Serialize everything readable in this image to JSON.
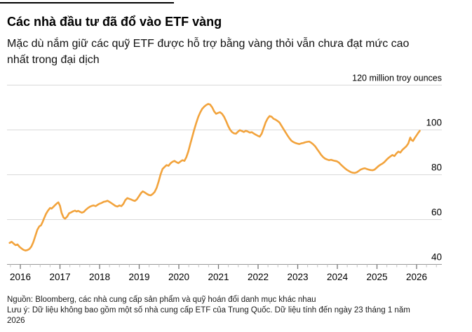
{
  "page": {
    "title": "Các nhà đầu tư đã đổ vào ETF vàng",
    "subtitle": "Mặc dù nắm giữ các quỹ ETF được hỗ trợ bằng vàng thỏi vẫn chưa đạt mức cao nhất trong đại dịch",
    "source_note": "Nguồn: Bloomberg, các nhà cung cấp sản phẩm và quỹ hoán đổi danh mục khác nhau",
    "data_note": "Lưu ý: Dữ liệu không bao gồm một số nhà cung cấp ETF của Trung Quốc. Dữ liệu tính đến ngày 23 tháng 1 năm 2026"
  },
  "chart_data": {
    "type": "line",
    "title": "Các nhà đầu tư đã đổ vào ETF vàng",
    "unit_label": "120 million troy ounces",
    "ylabel": "million troy ounces",
    "ylim": [
      40,
      120
    ],
    "xlim": [
      2015.73,
      2026.55
    ],
    "grid": true,
    "legend_position": "none",
    "y_ticks": [
      40,
      60,
      80,
      100,
      120
    ],
    "x_tick_labels": [
      "2016",
      "2017",
      "2018",
      "2019",
      "2020",
      "2021",
      "2022",
      "2023",
      "2024",
      "2025",
      "2026"
    ],
    "line_color": "#F2A33C",
    "grid_color": "#D9D9D9",
    "axis_color": "#9A9A9A",
    "major_tick_color": "#767676",
    "minor_tick_color": "#C2C2C2",
    "points": [
      [
        2015.73,
        49.6
      ],
      [
        2015.78,
        50.1
      ],
      [
        2015.83,
        49.3
      ],
      [
        2015.88,
        48.6
      ],
      [
        2015.93,
        48.9
      ],
      [
        2015.98,
        47.8
      ],
      [
        2016.03,
        47.1
      ],
      [
        2016.08,
        46.5
      ],
      [
        2016.13,
        46.2
      ],
      [
        2016.18,
        46.4
      ],
      [
        2016.23,
        46.9
      ],
      [
        2016.28,
        48.0
      ],
      [
        2016.33,
        50.0
      ],
      [
        2016.38,
        52.8
      ],
      [
        2016.43,
        55.5
      ],
      [
        2016.48,
        57.0
      ],
      [
        2016.52,
        57.4
      ],
      [
        2016.56,
        58.8
      ],
      [
        2016.6,
        60.6
      ],
      [
        2016.65,
        62.6
      ],
      [
        2016.7,
        64.1
      ],
      [
        2016.75,
        65.2
      ],
      [
        2016.79,
        64.9
      ],
      [
        2016.83,
        65.6
      ],
      [
        2016.88,
        66.5
      ],
      [
        2016.93,
        67.3
      ],
      [
        2016.96,
        67.7
      ],
      [
        2017.0,
        66.2
      ],
      [
        2017.04,
        63.0
      ],
      [
        2017.09,
        60.9
      ],
      [
        2017.13,
        60.4
      ],
      [
        2017.18,
        61.3
      ],
      [
        2017.23,
        62.8
      ],
      [
        2017.28,
        63.2
      ],
      [
        2017.33,
        63.7
      ],
      [
        2017.38,
        64.0
      ],
      [
        2017.42,
        63.6
      ],
      [
        2017.46,
        63.9
      ],
      [
        2017.5,
        63.5
      ],
      [
        2017.55,
        63.1
      ],
      [
        2017.6,
        63.4
      ],
      [
        2017.65,
        64.3
      ],
      [
        2017.7,
        65.1
      ],
      [
        2017.75,
        65.7
      ],
      [
        2017.8,
        66.1
      ],
      [
        2017.85,
        66.3
      ],
      [
        2017.9,
        66.0
      ],
      [
        2017.95,
        66.6
      ],
      [
        2018.0,
        67.1
      ],
      [
        2018.05,
        67.4
      ],
      [
        2018.1,
        67.9
      ],
      [
        2018.15,
        68.1
      ],
      [
        2018.2,
        68.4
      ],
      [
        2018.25,
        67.9
      ],
      [
        2018.3,
        67.3
      ],
      [
        2018.35,
        66.7
      ],
      [
        2018.4,
        66.1
      ],
      [
        2018.45,
        65.8
      ],
      [
        2018.5,
        66.3
      ],
      [
        2018.55,
        66.0
      ],
      [
        2018.6,
        67.0
      ],
      [
        2018.65,
        68.7
      ],
      [
        2018.7,
        69.6
      ],
      [
        2018.74,
        69.3
      ],
      [
        2018.79,
        69.0
      ],
      [
        2018.84,
        68.6
      ],
      [
        2018.89,
        68.3
      ],
      [
        2018.94,
        69.0
      ],
      [
        2019.0,
        70.6
      ],
      [
        2019.05,
        71.9
      ],
      [
        2019.09,
        72.6
      ],
      [
        2019.14,
        72.1
      ],
      [
        2019.19,
        71.5
      ],
      [
        2019.24,
        71.0
      ],
      [
        2019.29,
        70.8
      ],
      [
        2019.34,
        71.4
      ],
      [
        2019.39,
        72.3
      ],
      [
        2019.44,
        74.2
      ],
      [
        2019.49,
        77.0
      ],
      [
        2019.54,
        80.2
      ],
      [
        2019.59,
        82.6
      ],
      [
        2019.64,
        83.5
      ],
      [
        2019.69,
        84.3
      ],
      [
        2019.74,
        84.0
      ],
      [
        2019.79,
        85.1
      ],
      [
        2019.84,
        85.8
      ],
      [
        2019.89,
        86.2
      ],
      [
        2019.94,
        85.6
      ],
      [
        2019.99,
        85.2
      ],
      [
        2020.04,
        85.9
      ],
      [
        2020.09,
        86.5
      ],
      [
        2020.14,
        86.2
      ],
      [
        2020.19,
        87.8
      ],
      [
        2020.24,
        90.5
      ],
      [
        2020.29,
        93.8
      ],
      [
        2020.34,
        97.0
      ],
      [
        2020.39,
        100.2
      ],
      [
        2020.44,
        103.2
      ],
      [
        2020.49,
        105.8
      ],
      [
        2020.54,
        107.8
      ],
      [
        2020.59,
        109.4
      ],
      [
        2020.64,
        110.4
      ],
      [
        2020.69,
        111.1
      ],
      [
        2020.74,
        111.6
      ],
      [
        2020.79,
        111.3
      ],
      [
        2020.84,
        110.1
      ],
      [
        2020.89,
        108.3
      ],
      [
        2020.94,
        107.2
      ],
      [
        2020.99,
        107.6
      ],
      [
        2021.04,
        107.9
      ],
      [
        2021.09,
        107.2
      ],
      [
        2021.14,
        105.9
      ],
      [
        2021.19,
        104.1
      ],
      [
        2021.24,
        101.9
      ],
      [
        2021.29,
        100.2
      ],
      [
        2021.34,
        99.1
      ],
      [
        2021.39,
        98.5
      ],
      [
        2021.44,
        98.3
      ],
      [
        2021.49,
        99.2
      ],
      [
        2021.54,
        99.9
      ],
      [
        2021.59,
        99.5
      ],
      [
        2021.64,
        99.1
      ],
      [
        2021.69,
        99.6
      ],
      [
        2021.74,
        99.3
      ],
      [
        2021.79,
        98.8
      ],
      [
        2021.84,
        99.0
      ],
      [
        2021.89,
        98.4
      ],
      [
        2021.94,
        97.9
      ],
      [
        2021.99,
        97.4
      ],
      [
        2022.04,
        97.0
      ],
      [
        2022.09,
        98.3
      ],
      [
        2022.14,
        100.8
      ],
      [
        2022.19,
        103.3
      ],
      [
        2022.24,
        105.1
      ],
      [
        2022.29,
        106.2
      ],
      [
        2022.34,
        105.9
      ],
      [
        2022.39,
        105.0
      ],
      [
        2022.44,
        104.6
      ],
      [
        2022.49,
        104.0
      ],
      [
        2022.54,
        103.3
      ],
      [
        2022.59,
        101.9
      ],
      [
        2022.64,
        100.4
      ],
      [
        2022.69,
        99.0
      ],
      [
        2022.74,
        97.6
      ],
      [
        2022.79,
        96.3
      ],
      [
        2022.84,
        95.2
      ],
      [
        2022.89,
        94.6
      ],
      [
        2022.94,
        94.2
      ],
      [
        2022.99,
        93.9
      ],
      [
        2023.04,
        93.7
      ],
      [
        2023.09,
        94.0
      ],
      [
        2023.14,
        94.2
      ],
      [
        2023.19,
        94.5
      ],
      [
        2023.24,
        94.7
      ],
      [
        2023.29,
        94.8
      ],
      [
        2023.34,
        94.3
      ],
      [
        2023.39,
        93.6
      ],
      [
        2023.44,
        92.7
      ],
      [
        2023.49,
        91.4
      ],
      [
        2023.54,
        90.2
      ],
      [
        2023.59,
        88.9
      ],
      [
        2023.64,
        87.9
      ],
      [
        2023.69,
        87.2
      ],
      [
        2023.74,
        86.8
      ],
      [
        2023.79,
        86.5
      ],
      [
        2023.84,
        86.7
      ],
      [
        2023.89,
        86.4
      ],
      [
        2023.94,
        86.2
      ],
      [
        2023.99,
        86.0
      ],
      [
        2024.04,
        85.4
      ],
      [
        2024.09,
        84.5
      ],
      [
        2024.14,
        83.7
      ],
      [
        2024.19,
        82.9
      ],
      [
        2024.24,
        82.2
      ],
      [
        2024.29,
        81.7
      ],
      [
        2024.34,
        81.2
      ],
      [
        2024.39,
        80.9
      ],
      [
        2024.44,
        80.8
      ],
      [
        2024.49,
        81.1
      ],
      [
        2024.54,
        81.7
      ],
      [
        2024.59,
        82.3
      ],
      [
        2024.64,
        82.7
      ],
      [
        2024.69,
        82.9
      ],
      [
        2024.74,
        82.6
      ],
      [
        2024.79,
        82.3
      ],
      [
        2024.84,
        82.1
      ],
      [
        2024.89,
        82.0
      ],
      [
        2024.94,
        82.3
      ],
      [
        2024.99,
        83.1
      ],
      [
        2025.04,
        83.9
      ],
      [
        2025.09,
        84.5
      ],
      [
        2025.14,
        85.0
      ],
      [
        2025.19,
        85.7
      ],
      [
        2025.24,
        86.7
      ],
      [
        2025.29,
        87.5
      ],
      [
        2025.34,
        88.2
      ],
      [
        2025.39,
        88.8
      ],
      [
        2025.44,
        88.3
      ],
      [
        2025.49,
        89.5
      ],
      [
        2025.54,
        90.3
      ],
      [
        2025.59,
        89.9
      ],
      [
        2025.64,
        91.1
      ],
      [
        2025.69,
        91.9
      ],
      [
        2025.74,
        92.7
      ],
      [
        2025.79,
        93.9
      ],
      [
        2025.84,
        96.6
      ],
      [
        2025.87,
        95.5
      ],
      [
        2025.91,
        95.1
      ],
      [
        2025.95,
        96.3
      ],
      [
        2026.0,
        97.6
      ],
      [
        2026.04,
        98.7
      ],
      [
        2026.08,
        99.6
      ]
    ]
  }
}
